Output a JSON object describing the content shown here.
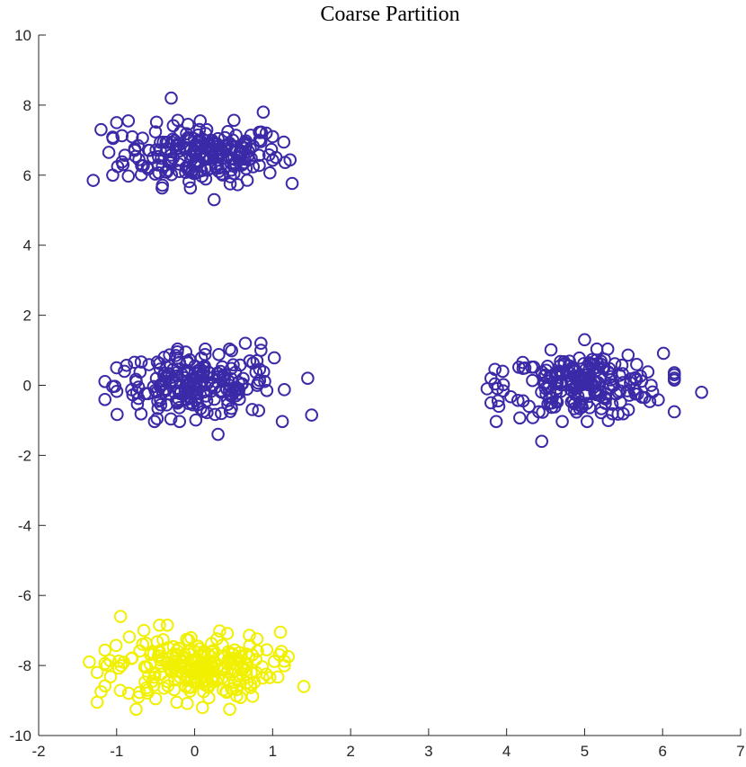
{
  "chart_data": {
    "type": "scatter",
    "title": "Coarse Partition",
    "xlabel": "",
    "ylabel": "",
    "xlim": [
      -2,
      7
    ],
    "ylim": [
      -10,
      10
    ],
    "x_ticks": [
      -2,
      -1,
      0,
      1,
      2,
      3,
      4,
      5,
      6,
      7
    ],
    "y_ticks": [
      -10,
      -8,
      -6,
      -4,
      -2,
      0,
      2,
      4,
      6,
      8,
      10
    ],
    "grid": false,
    "legend": "none",
    "marker": "open-circle",
    "series": [
      {
        "color": "#3b2aa7",
        "clusters": [
          {
            "center": [
              0.1,
              6.6
            ],
            "spread": [
              0.5,
              0.42
            ],
            "count": 220
          },
          {
            "center": [
              0.0,
              0.0
            ],
            "spread": [
              0.5,
              0.45
            ],
            "count": 210
          },
          {
            "center": [
              5.0,
              0.0
            ],
            "spread": [
              0.5,
              0.45
            ],
            "count": 210
          }
        ],
        "points": [
          [
            -0.3,
            8.2
          ],
          [
            0.88,
            7.8
          ],
          [
            -1.0,
            7.5
          ],
          [
            -0.85,
            7.55
          ],
          [
            -1.2,
            7.3
          ],
          [
            -1.3,
            5.85
          ],
          [
            -1.05,
            6.0
          ],
          [
            -1.1,
            6.65
          ],
          [
            1.0,
            7.1
          ],
          [
            0.25,
            5.3
          ],
          [
            0.65,
            1.2
          ],
          [
            0.85,
            1.2
          ],
          [
            0.85,
            1.0
          ],
          [
            1.45,
            0.2
          ],
          [
            1.5,
            -0.85
          ],
          [
            0.3,
            -1.4
          ],
          [
            -1.0,
            0.5
          ],
          [
            -0.9,
            0.4
          ],
          [
            6.5,
            -0.2
          ],
          [
            6.15,
            0.15
          ],
          [
            5.0,
            1.3
          ],
          [
            4.45,
            -1.6
          ],
          [
            3.8,
            0.2
          ],
          [
            3.75,
            -0.1
          ],
          [
            3.8,
            -0.5
          ],
          [
            3.9,
            -0.6
          ],
          [
            3.95,
            0.4
          ]
        ]
      },
      {
        "color": "#f0f000",
        "clusters": [
          {
            "center": [
              0.0,
              -8.05
            ],
            "spread": [
              0.5,
              0.45
            ],
            "count": 230
          }
        ],
        "points": [
          [
            -0.95,
            -6.6
          ],
          [
            -0.45,
            -6.85
          ],
          [
            -0.35,
            -6.85
          ],
          [
            -0.65,
            -7.0
          ],
          [
            1.1,
            -7.05
          ],
          [
            1.2,
            -7.75
          ],
          [
            1.4,
            -8.6
          ],
          [
            -1.35,
            -7.9
          ],
          [
            -1.25,
            -8.2
          ],
          [
            -1.2,
            -8.75
          ],
          [
            -1.25,
            -9.05
          ],
          [
            -0.75,
            -9.25
          ],
          [
            0.45,
            -9.25
          ],
          [
            0.1,
            -9.2
          ],
          [
            -0.5,
            -8.95
          ]
        ]
      }
    ]
  }
}
